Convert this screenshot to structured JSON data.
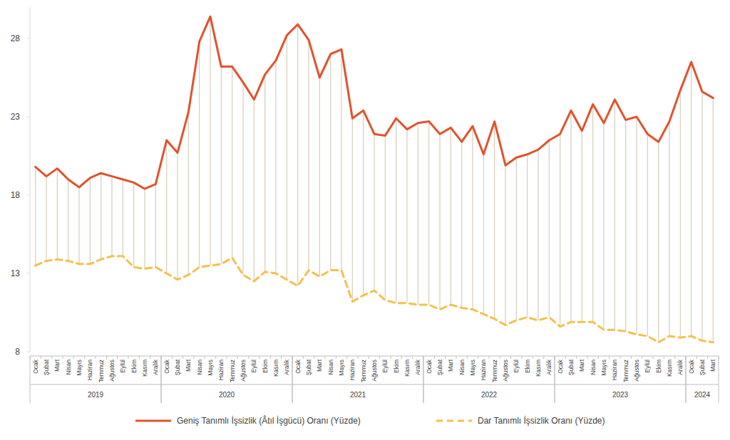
{
  "chart_data": {
    "type": "line",
    "categories": [
      "Ocak",
      "Şubat",
      "Mart",
      "Nisan",
      "Mayıs",
      "Haziran",
      "Temmuz",
      "Ağustos",
      "Eylül",
      "Ekim",
      "Kasım",
      "Aralık",
      "Ocak",
      "Şubat",
      "Mart",
      "Nisan",
      "Mayıs",
      "Haziran",
      "Temmuz",
      "Ağustos",
      "Eylül",
      "Ekim",
      "Kasım",
      "Aralık",
      "Ocak",
      "Şubat",
      "Mart",
      "Nisan",
      "Mayıs",
      "Haziran",
      "Temmuz",
      "Ağustos",
      "Eylül",
      "Ekim",
      "Kasım",
      "Aralık",
      "Ocak",
      "Şubat",
      "Mart",
      "Nisan",
      "Mayıs",
      "Haziran",
      "Temmuz",
      "Ağustos",
      "Eylül",
      "Ekim",
      "Kasım",
      "Aralık",
      "Ocak",
      "Şubat",
      "Mart",
      "Nisan",
      "Mayıs",
      "Haziran",
      "Temmuz",
      "Ağustos",
      "Eylül",
      "Ekim",
      "Kasım",
      "Aralık",
      "Ocak",
      "Şubat",
      "Mart"
    ],
    "category_groups": [
      {
        "label": "2019",
        "start": 0,
        "end": 11
      },
      {
        "label": "2020",
        "start": 12,
        "end": 23
      },
      {
        "label": "2021",
        "start": 24,
        "end": 35
      },
      {
        "label": "2022",
        "start": 36,
        "end": 47
      },
      {
        "label": "2023",
        "start": 48,
        "end": 59
      },
      {
        "label": "2024",
        "start": 60,
        "end": 62
      }
    ],
    "series": [
      {
        "name": "Geniş Tanımlı İşsizlik (Âtıl İşgücü) Oranı (Yüzde)",
        "color": "#e0532c",
        "line_style": "solid",
        "marker": "none",
        "values": [
          19.8,
          19.2,
          19.7,
          19.0,
          18.5,
          19.1,
          19.4,
          19.2,
          19.0,
          18.8,
          18.4,
          18.7,
          21.5,
          20.7,
          23.3,
          27.8,
          29.4,
          26.2,
          26.2,
          25.2,
          24.1,
          25.7,
          26.6,
          28.2,
          28.9,
          27.9,
          25.5,
          27.0,
          27.3,
          22.9,
          23.4,
          21.9,
          21.8,
          22.9,
          22.2,
          22.6,
          22.7,
          21.9,
          22.3,
          21.4,
          22.4,
          20.6,
          22.7,
          19.9,
          20.4,
          20.6,
          20.9,
          21.5,
          21.9,
          23.4,
          22.1,
          23.8,
          22.6,
          24.1,
          22.8,
          23.0,
          21.9,
          21.4,
          22.7,
          24.7,
          26.5,
          24.6,
          24.2
        ]
      },
      {
        "name": "Dar Tanımlı İşsizlik Oranı (Yüzde)",
        "color": "#f2c14e",
        "line_style": "dashed",
        "marker": "none",
        "values": [
          13.5,
          13.8,
          13.9,
          13.8,
          13.6,
          13.6,
          13.9,
          14.1,
          14.1,
          13.4,
          13.3,
          13.4,
          13.0,
          12.6,
          12.9,
          13.4,
          13.5,
          13.6,
          14.0,
          12.9,
          12.5,
          13.1,
          13.0,
          12.6,
          12.2,
          13.2,
          12.8,
          13.2,
          13.2,
          11.2,
          11.6,
          11.9,
          11.3,
          11.1,
          11.1,
          11.0,
          11.0,
          10.7,
          11.0,
          10.8,
          10.7,
          10.4,
          10.1,
          9.7,
          10.0,
          10.2,
          10.0,
          10.2,
          9.6,
          9.9,
          9.9,
          9.9,
          9.4,
          9.4,
          9.3,
          9.1,
          9.0,
          8.6,
          9.0,
          8.9,
          9.0,
          8.7,
          8.6
        ]
      }
    ],
    "ylim": [
      8,
      30
    ],
    "yticks": [
      8,
      13,
      18,
      23,
      28
    ],
    "grid": false,
    "legend": "bottom"
  }
}
